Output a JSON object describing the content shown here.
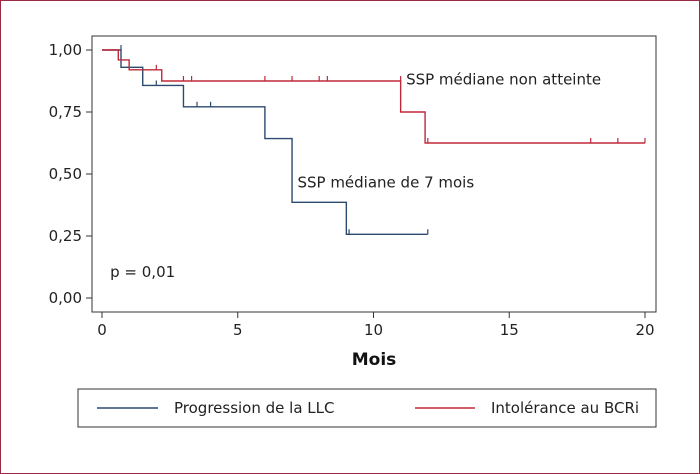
{
  "chart_data": {
    "type": "line",
    "subtype": "kaplan-meier",
    "title": "",
    "xlabel": "Mois",
    "ylabel": "",
    "xlim": [
      0,
      20
    ],
    "ylim": [
      0,
      1
    ],
    "x_ticks": [
      0,
      5,
      10,
      15,
      20
    ],
    "x_tick_labels": [
      "0",
      "5",
      "10",
      "15",
      "20"
    ],
    "y_ticks": [
      0,
      0.25,
      0.5,
      0.75,
      1
    ],
    "y_tick_labels": [
      "0,00",
      "0,25",
      "0,50",
      "0,75",
      "1,00"
    ],
    "grid": false,
    "legend_position": "bottom",
    "annotations": [
      {
        "text": "SSP médiane non atteinte",
        "x": 11.2,
        "y": 0.86
      },
      {
        "text": "SSP médiane de 7 mois",
        "x": 7.2,
        "y": 0.445
      },
      {
        "text": "p = 0,01",
        "x": 0.3,
        "y": 0.085
      }
    ],
    "series": [
      {
        "name": "Progression de la LLC",
        "color": "#2b4a6f",
        "steps": [
          [
            0,
            1.0
          ],
          [
            0.7,
            0.93
          ],
          [
            1.5,
            0.857
          ],
          [
            3.0,
            0.771
          ],
          [
            6.0,
            0.643
          ],
          [
            7.0,
            0.386
          ],
          [
            9.0,
            0.257
          ],
          [
            12.0,
            0.257
          ]
        ],
        "censored": [
          [
            0.7,
            1.0
          ],
          [
            2.0,
            0.857
          ],
          [
            3.5,
            0.771
          ],
          [
            4.0,
            0.771
          ],
          [
            9.1,
            0.257
          ],
          [
            12.0,
            0.257
          ]
        ]
      },
      {
        "name": "Intolérance au BCRi",
        "color": "#c0283a",
        "steps": [
          [
            0,
            1.0
          ],
          [
            0.6,
            0.96
          ],
          [
            1.0,
            0.92
          ],
          [
            2.2,
            0.875
          ],
          [
            11.0,
            0.75
          ],
          [
            11.9,
            0.625
          ],
          [
            20.0,
            0.625
          ]
        ],
        "censored": [
          [
            2.0,
            0.92
          ],
          [
            3.0,
            0.875
          ],
          [
            3.3,
            0.875
          ],
          [
            6.0,
            0.875
          ],
          [
            7.0,
            0.875
          ],
          [
            8.0,
            0.875
          ],
          [
            8.3,
            0.875
          ],
          [
            11.0,
            0.875
          ],
          [
            12.0,
            0.625
          ],
          [
            18.0,
            0.625
          ],
          [
            19.0,
            0.625
          ],
          [
            20.0,
            0.625
          ]
        ]
      }
    ]
  }
}
